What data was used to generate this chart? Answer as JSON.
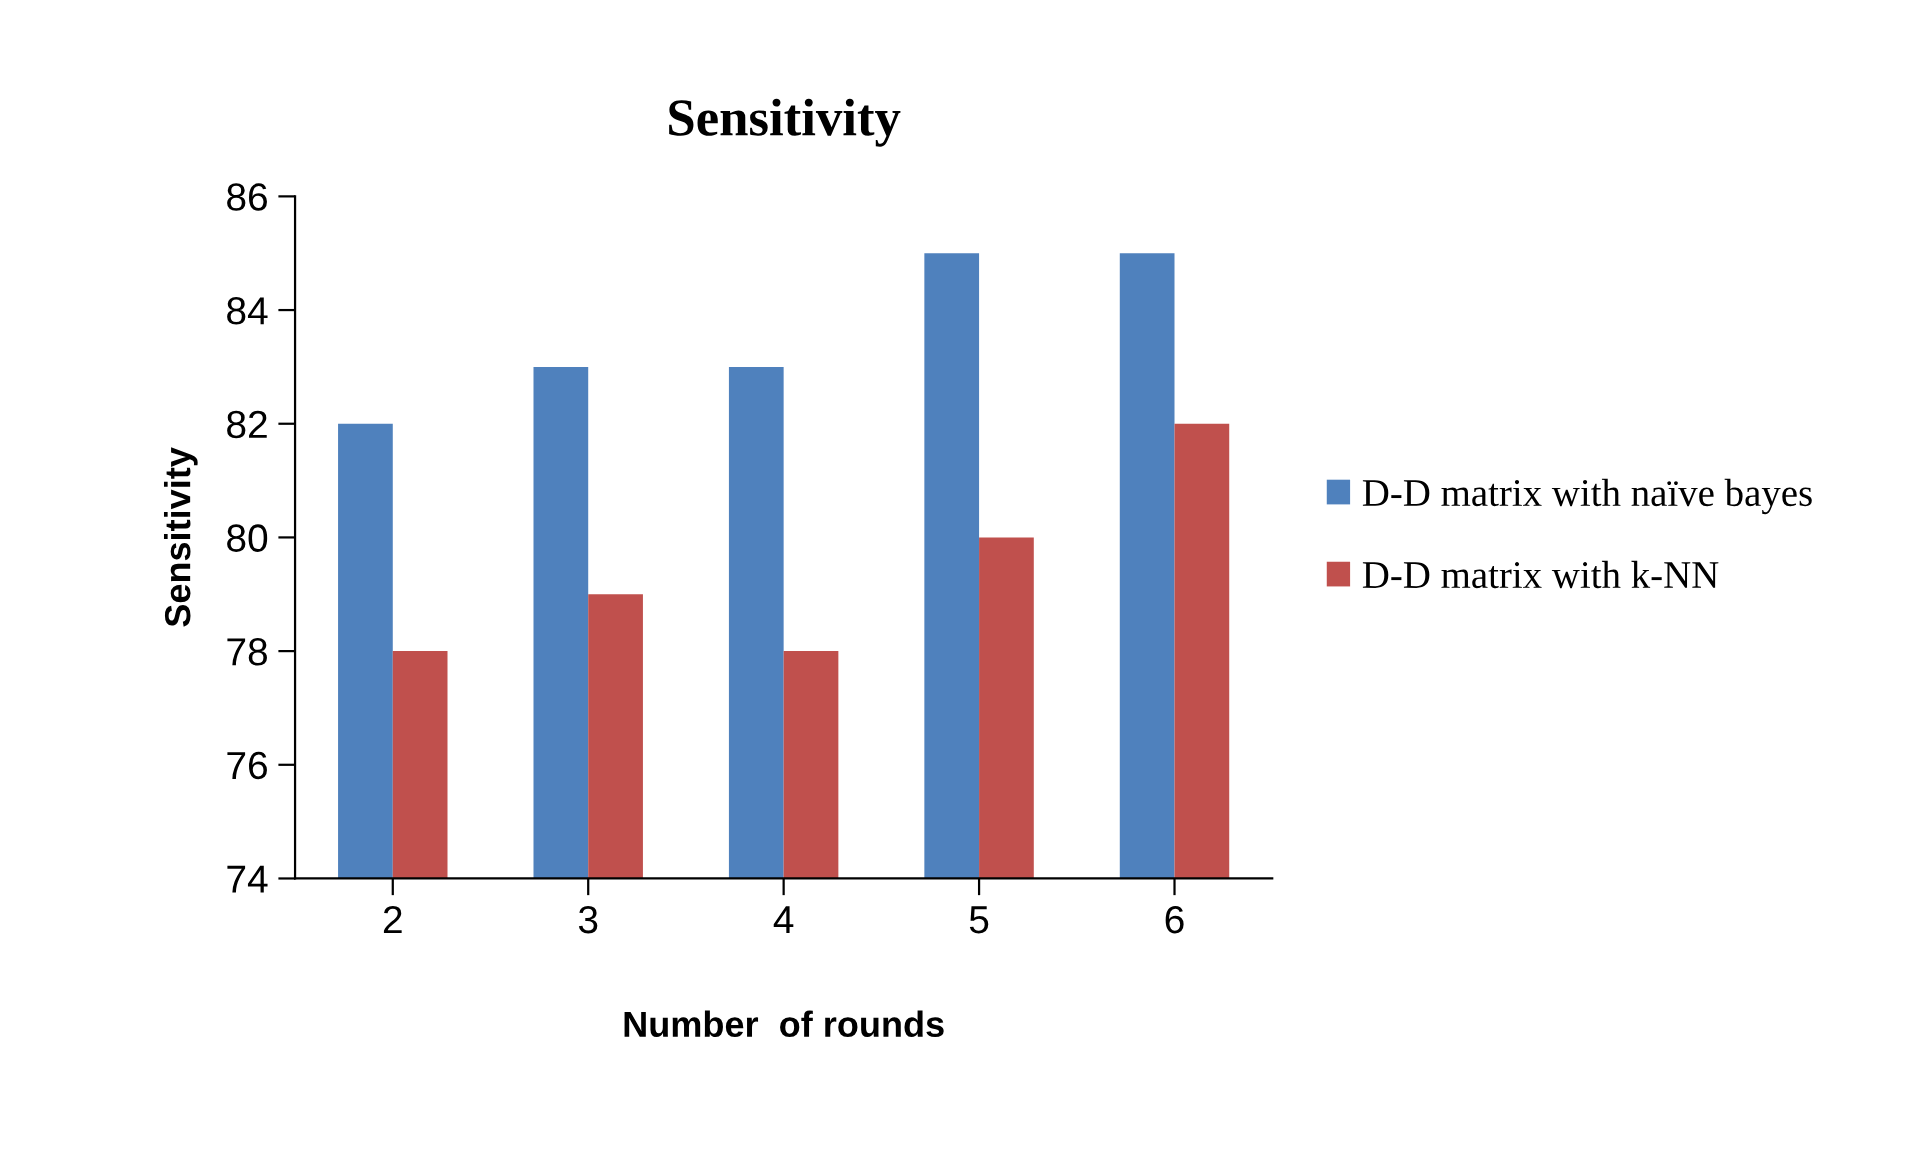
{
  "chart_data": {
    "type": "bar",
    "title": "Sensitivity",
    "xlabel": "Number  of rounds",
    "ylabel": "Sensitivity",
    "categories": [
      "2",
      "3",
      "4",
      "5",
      "6"
    ],
    "series": [
      {
        "name": "D-D matrix with naïve bayes",
        "color": "#4f81bd",
        "values": [
          82,
          83,
          83,
          85,
          85
        ]
      },
      {
        "name": "D-D matrix with k-NN",
        "color": "#c0504d",
        "values": [
          78,
          79,
          78,
          80,
          82
        ]
      }
    ],
    "ylim": [
      74,
      86
    ],
    "yticks": [
      74,
      76,
      78,
      80,
      82,
      84,
      86
    ],
    "grid": false,
    "legend": "right"
  }
}
